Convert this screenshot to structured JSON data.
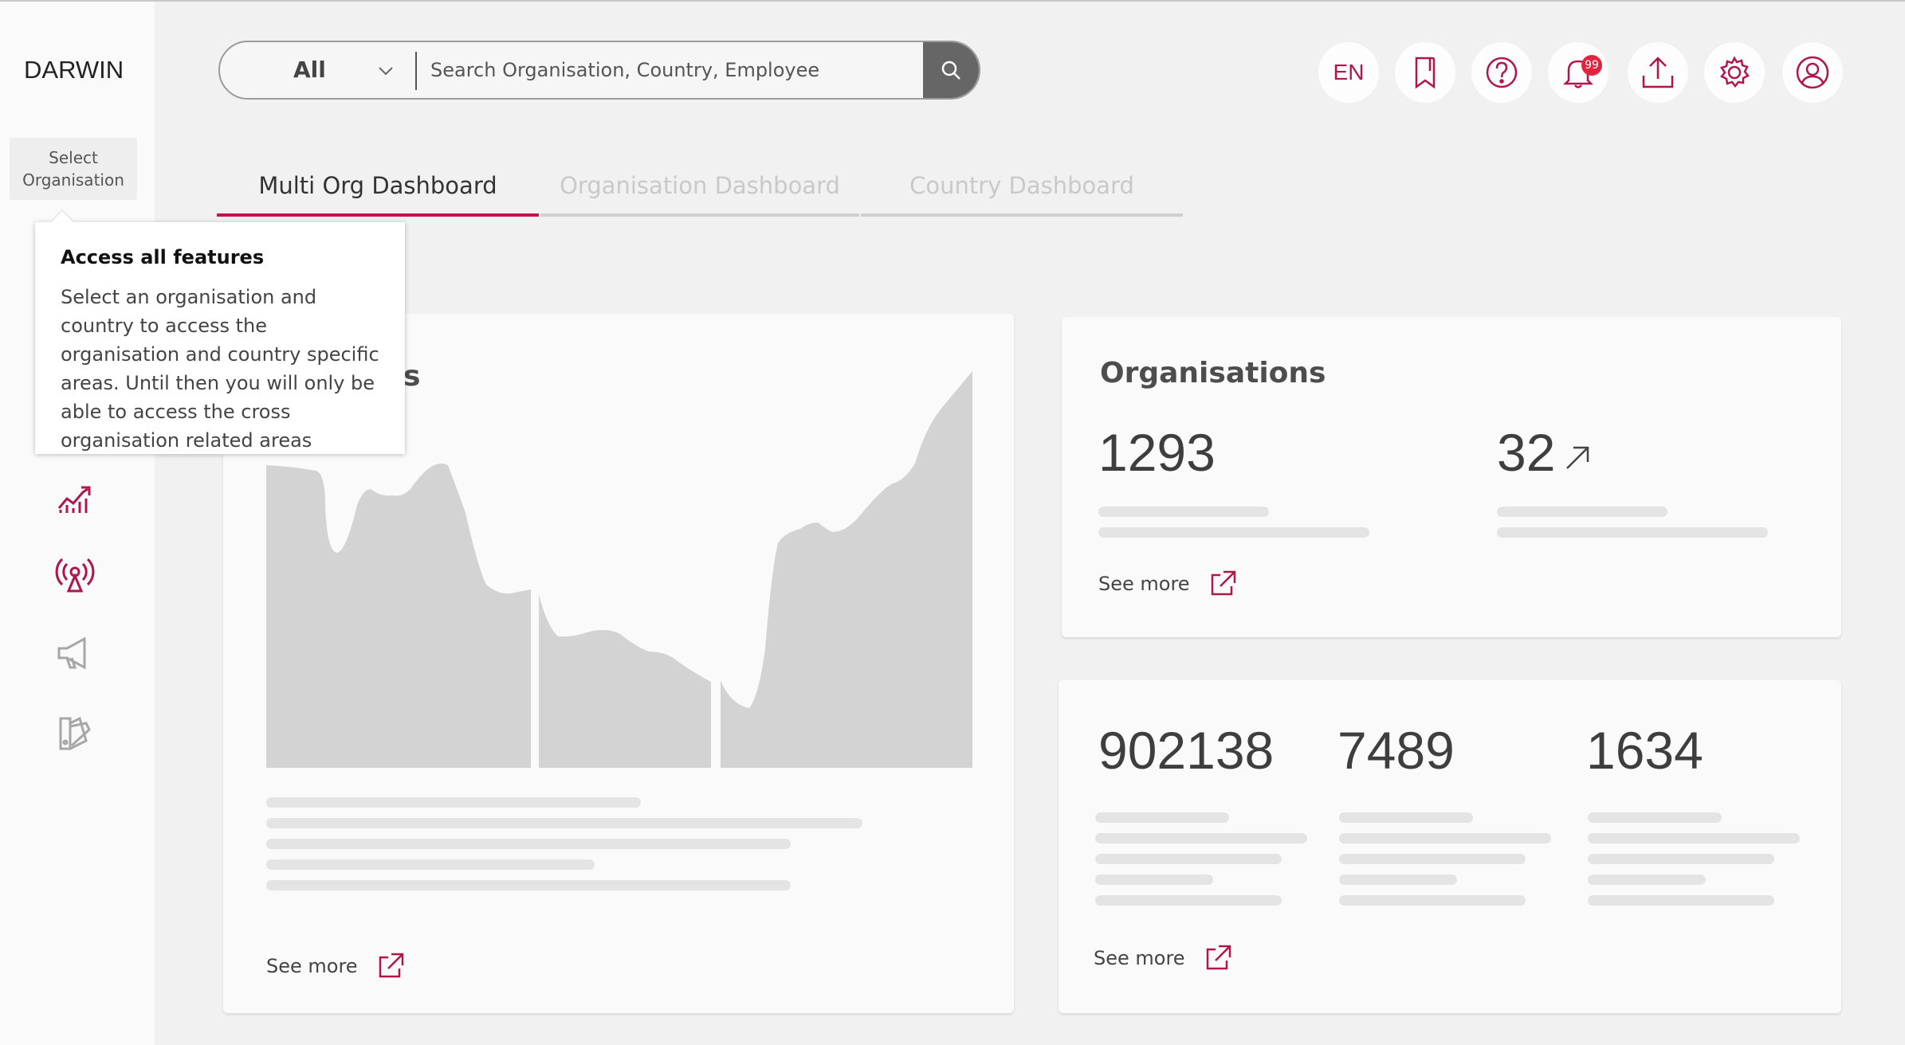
{
  "app": {
    "logo": "DARWIN"
  },
  "sidebar": {
    "select_org_label": "Select Organisation",
    "items": [
      {
        "icon": "growth-chart-icon"
      },
      {
        "icon": "broadcast-tower-icon"
      },
      {
        "icon": "megaphone-icon"
      },
      {
        "icon": "swatch-palette-icon"
      }
    ]
  },
  "search": {
    "scope": "All",
    "placeholder": "Search Organisation, Country, Employee"
  },
  "header": {
    "language": "EN",
    "notifications_count": "99",
    "icons": [
      "bookmark-icon",
      "help-icon",
      "bell-icon",
      "upload-icon",
      "settings-icon",
      "user-icon"
    ]
  },
  "tabs": [
    {
      "label": "Multi Org Dashboard",
      "active": true
    },
    {
      "label": "Organisation Dashboard",
      "active": false
    },
    {
      "label": "Country Dashboard",
      "active": false
    }
  ],
  "tooltip": {
    "title": "Access all features",
    "body": "Select an organisation and country to access the organisation and country specific areas. Until then you will only be able to access the cross organisation related areas"
  },
  "chart_card": {
    "title_fragment": "s",
    "see_more": "See more"
  },
  "organisations_card": {
    "title": "Organisations",
    "value_1": "1293",
    "value_2": "32",
    "see_more": "See more"
  },
  "stats_card": {
    "value_1": "902138",
    "value_2": "7489",
    "value_3": "1634",
    "see_more": "See more"
  },
  "colors": {
    "accent": "#c4134f",
    "badge": "#e0243f"
  }
}
